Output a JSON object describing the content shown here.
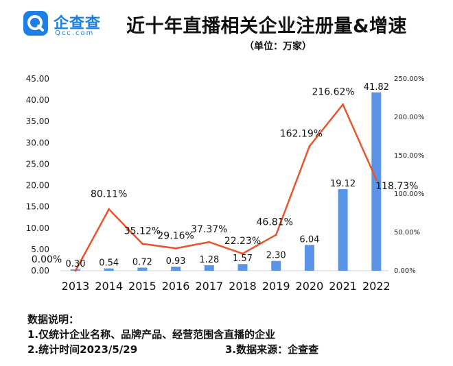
{
  "header": {
    "logo_cn": "企查查",
    "logo_en": "Qcc.com",
    "title": "近十年直播相关企业注册量&增速",
    "subtitle": "（单位：万家）"
  },
  "colors": {
    "bar": "#5b93e6",
    "line": "#e8542b",
    "brand": "#1c7fe6"
  },
  "chart_data": {
    "type": "bar+line",
    "categories": [
      "2013",
      "2014",
      "2015",
      "2016",
      "2017",
      "2018",
      "2019",
      "2020",
      "2021",
      "2022"
    ],
    "series": [
      {
        "type": "bar",
        "axis": "left",
        "values": [
          0.3,
          0.54,
          0.72,
          0.93,
          1.28,
          1.57,
          2.3,
          6.04,
          19.12,
          41.82
        ],
        "labels": [
          "0.30",
          "0.54",
          "0.72",
          "0.93",
          "1.28",
          "1.57",
          "2.30",
          "6.04",
          "19.12",
          "41.82"
        ]
      },
      {
        "type": "line",
        "axis": "right",
        "values": [
          0.0,
          80.11,
          35.12,
          29.16,
          37.37,
          22.23,
          46.81,
          162.19,
          216.62,
          118.73
        ],
        "labels": [
          "0.00%",
          "80.11%",
          "35.12%",
          "29.16%",
          "37.37%",
          "22.23%",
          "46.81%",
          "162.19%",
          "216.62%",
          "118.73%"
        ]
      }
    ],
    "y_left": {
      "range": [
        0,
        45
      ],
      "ticks": [
        "0.00",
        "5.00",
        "10.00",
        "15.00",
        "20.00",
        "25.00",
        "30.00",
        "35.00",
        "40.00",
        "45.00"
      ]
    },
    "y_right": {
      "range": [
        0,
        250
      ],
      "ticks": [
        "0.00%",
        "50.00%",
        "100.00%",
        "150.00%",
        "200.00%",
        "250.00%"
      ]
    },
    "grid": false,
    "legend": "none"
  },
  "notes": {
    "heading": "数据说明：",
    "line1": "1.仅统计企业名称、品牌产品、经营范围含直播的企业",
    "line2a": "2.统计时间2023/5/29",
    "line2b": "3.数据来源：企查查"
  }
}
